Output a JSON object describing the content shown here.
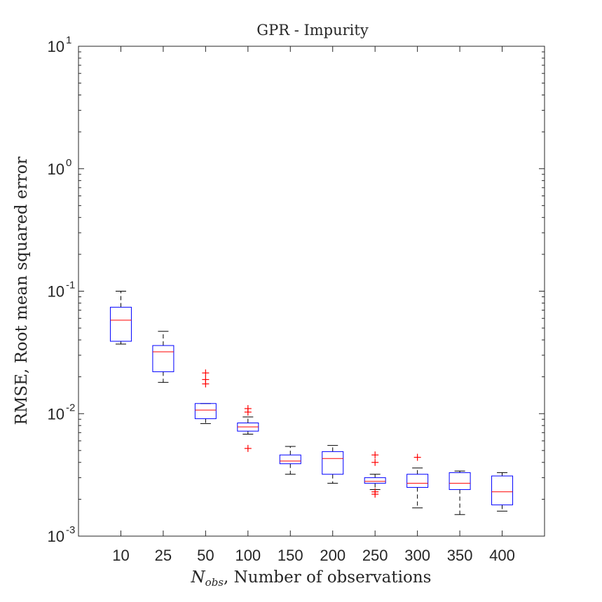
{
  "chart_data": {
    "type": "box",
    "title": "GPR - Impurity",
    "xlabel": {
      "prefix": "N",
      "subscript": "obs",
      "rest": ", Number of observations"
    },
    "ylabel": "RMSE, Root mean squared error",
    "yscale": "log",
    "ylim": [
      0.001,
      10
    ],
    "yticks": [
      {
        "value": 0.001,
        "exp": "-3"
      },
      {
        "value": 0.01,
        "exp": "-2"
      },
      {
        "value": 0.1,
        "exp": "-1"
      },
      {
        "value": 1,
        "exp": "0"
      },
      {
        "value": 10,
        "exp": "1"
      }
    ],
    "grid": false,
    "box_color": "#0000ff",
    "median_color": "#ff0000",
    "whisker_color": "#000000",
    "outlier_color": "#ff0000",
    "categories": [
      "10",
      "25",
      "50",
      "100",
      "150",
      "200",
      "250",
      "300",
      "350",
      "400"
    ],
    "boxes": [
      {
        "category": "10",
        "whisker_low": 0.037,
        "q1": 0.039,
        "median": 0.058,
        "q3": 0.074,
        "whisker_high": 0.1,
        "outliers": []
      },
      {
        "category": "25",
        "whisker_low": 0.018,
        "q1": 0.022,
        "median": 0.032,
        "q3": 0.036,
        "whisker_high": 0.047,
        "outliers": []
      },
      {
        "category": "50",
        "whisker_low": 0.0083,
        "q1": 0.0091,
        "median": 0.0107,
        "q3": 0.0121,
        "whisker_high": 0.0121,
        "outliers": [
          0.0175,
          0.019,
          0.0215
        ]
      },
      {
        "category": "100",
        "whisker_low": 0.0068,
        "q1": 0.0072,
        "median": 0.0078,
        "q3": 0.0084,
        "whisker_high": 0.0094,
        "outliers": [
          0.0103,
          0.011,
          0.0052
        ]
      },
      {
        "category": "150",
        "whisker_low": 0.0032,
        "q1": 0.0039,
        "median": 0.0041,
        "q3": 0.0046,
        "whisker_high": 0.0054,
        "outliers": []
      },
      {
        "category": "200",
        "whisker_low": 0.0027,
        "q1": 0.0032,
        "median": 0.0043,
        "q3": 0.0049,
        "whisker_high": 0.0055,
        "outliers": []
      },
      {
        "category": "250",
        "whisker_low": 0.0024,
        "q1": 0.0027,
        "median": 0.0028,
        "q3": 0.003,
        "whisker_high": 0.0032,
        "outliers": [
          0.004,
          0.0046,
          0.0023,
          0.0022
        ]
      },
      {
        "category": "300",
        "whisker_low": 0.0017,
        "q1": 0.0025,
        "median": 0.0027,
        "q3": 0.0032,
        "whisker_high": 0.0036,
        "outliers": [
          0.0044
        ]
      },
      {
        "category": "350",
        "whisker_low": 0.0015,
        "q1": 0.0024,
        "median": 0.0027,
        "q3": 0.0033,
        "whisker_high": 0.0034,
        "outliers": []
      },
      {
        "category": "400",
        "whisker_low": 0.0016,
        "q1": 0.0018,
        "median": 0.0023,
        "q3": 0.0031,
        "whisker_high": 0.0033,
        "outliers": []
      }
    ]
  }
}
